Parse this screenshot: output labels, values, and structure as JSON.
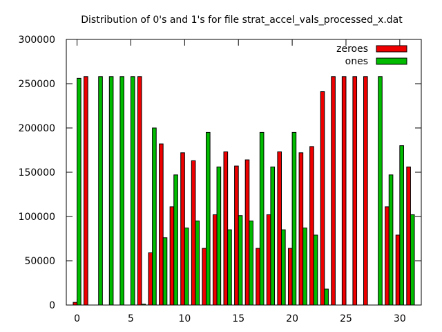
{
  "chart_data": {
    "type": "bar",
    "title": "Distribution of 0's and 1's for file strat_accel_vals_processed_x.dat",
    "xlabel": "",
    "ylabel": "",
    "xlim": [
      -1,
      32
    ],
    "ylim": [
      0,
      300000
    ],
    "xticks": [
      0,
      5,
      10,
      15,
      20,
      25,
      30
    ],
    "yticks": [
      0,
      50000,
      100000,
      150000,
      200000,
      250000,
      300000
    ],
    "legend_position": "top-right",
    "x": [
      0,
      1,
      2,
      3,
      4,
      5,
      6,
      7,
      8,
      9,
      10,
      11,
      12,
      13,
      14,
      15,
      16,
      17,
      18,
      19,
      20,
      21,
      22,
      23,
      24,
      25,
      26,
      27,
      28,
      29,
      30,
      31
    ],
    "series": [
      {
        "name": "zeroes",
        "color": "#ee0000",
        "values": [
          3000,
          258000,
          0,
          0,
          0,
          0,
          258000,
          59000,
          182000,
          111000,
          172000,
          163000,
          64000,
          102000,
          173000,
          157000,
          164000,
          64000,
          102000,
          173000,
          64000,
          172000,
          179000,
          241000,
          258000,
          258000,
          258000,
          258000,
          0,
          111000,
          79000,
          156000
        ]
      },
      {
        "name": "ones",
        "color": "#00bb00",
        "values": [
          256000,
          0,
          258000,
          258000,
          258000,
          258000,
          1000,
          200000,
          76000,
          147000,
          87000,
          95000,
          195000,
          156000,
          85000,
          101000,
          95000,
          195000,
          156000,
          85000,
          195000,
          87000,
          79000,
          18000,
          0,
          0,
          0,
          0,
          258000,
          147000,
          180000,
          102000
        ]
      }
    ]
  }
}
